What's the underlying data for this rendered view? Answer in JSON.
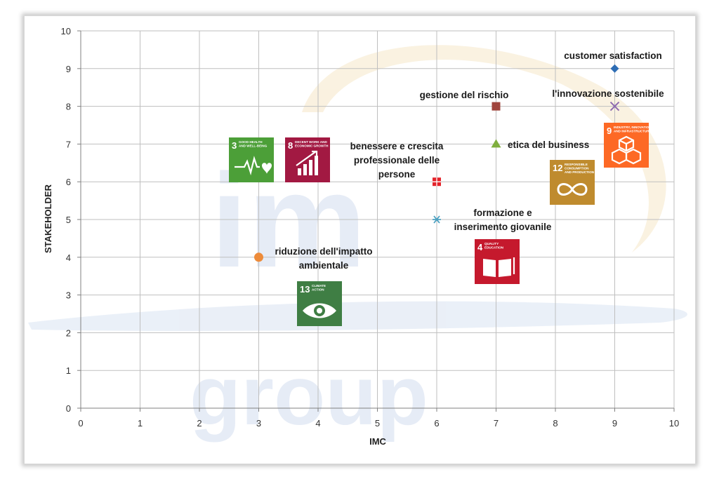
{
  "colors": {
    "grid": "#bfbfbf",
    "axis": "#808080",
    "watermark": "#c9d6ea",
    "sdg3": "#4c9f38",
    "sdg4": "#c5192d",
    "sdg8": "#a21942",
    "sdg9": "#fd6925",
    "sdg12": "#bf8b2e",
    "sdg13": "#3f7e44"
  },
  "watermark": {
    "top": "im",
    "bottom": "group"
  },
  "chart_data": {
    "type": "scatter",
    "xlabel": "IMC",
    "ylabel": "STAKEHOLDER",
    "xlim": [
      0,
      10
    ],
    "ylim": [
      0,
      10
    ],
    "xticks": [
      "0",
      "1",
      "2",
      "3",
      "4",
      "5",
      "6",
      "7",
      "8",
      "9",
      "10"
    ],
    "yticks": [
      "0",
      "1",
      "2",
      "3",
      "4",
      "5",
      "6",
      "7",
      "8",
      "9",
      "10"
    ],
    "grid": true,
    "legend": "none",
    "points": [
      {
        "label": "customer satisfaction",
        "x": 9,
        "y": 9,
        "marker": "diamond",
        "color": "#2e6db4"
      },
      {
        "label": "l'innovazione sostenibile",
        "x": 9,
        "y": 8,
        "marker": "x",
        "color": "#8e6bb0"
      },
      {
        "label": "gestione del rischio",
        "x": 7,
        "y": 8,
        "marker": "square",
        "color": "#a0453d"
      },
      {
        "label": "etica del business",
        "x": 7,
        "y": 7,
        "marker": "triangle",
        "color": "#7fae3e"
      },
      {
        "label": "benessere e crescita professionale  delle persone",
        "x": 6,
        "y": 6,
        "marker": "plus-square",
        "color": "#e3242b"
      },
      {
        "label": "formazione e inserimento giovanile",
        "x": 6,
        "y": 5,
        "marker": "star",
        "color": "#4aa0c0"
      },
      {
        "label": "riduzione dell'impatto ambientale",
        "x": 3,
        "y": 4,
        "marker": "circle",
        "color": "#ed8b3a"
      }
    ],
    "label_lines": {
      "customer satisfaction": [
        "customer satisfaction"
      ],
      "l'innovazione sostenibile": [
        "l'innovazione sostenibile"
      ],
      "gestione del rischio": [
        "gestione del rischio"
      ],
      "etica del business": [
        "etica del business"
      ],
      "benessere e crescita professionale  delle persone": [
        "benessere e crescita",
        "professionale  delle",
        "persone"
      ],
      "formazione e inserimento giovanile": [
        "formazione e",
        "inserimento giovanile"
      ],
      "riduzione dell'impatto ambientale": [
        "riduzione dell'impatto",
        "ambientale"
      ]
    }
  },
  "sdg_icons": [
    {
      "number": "3",
      "lines": [
        "GOOD HEALTH",
        "AND WELL-BEING"
      ],
      "icon": "heartbeat-icon"
    },
    {
      "number": "8",
      "lines": [
        "DECENT WORK AND",
        "ECONOMIC GROWTH"
      ],
      "icon": "growth-chart-icon"
    },
    {
      "number": "9",
      "lines": [
        "INDUSTRY, INNOVATION",
        "AND INFRASTRUCTURE"
      ],
      "icon": "cubes-icon"
    },
    {
      "number": "12",
      "lines": [
        "RESPONSIBLE",
        "CONSUMPTION",
        "AND PRODUCTION"
      ],
      "icon": "infinity-icon"
    },
    {
      "number": "4",
      "lines": [
        "QUALITY",
        "EDUCATION"
      ],
      "icon": "book-icon"
    },
    {
      "number": "13",
      "lines": [
        "CLIMATE",
        "ACTION"
      ],
      "icon": "eye-earth-icon"
    }
  ]
}
